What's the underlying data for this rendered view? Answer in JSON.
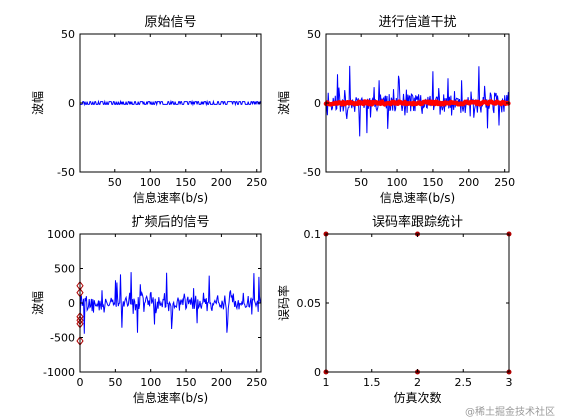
{
  "watermark": "@稀土掘金技术社区",
  "colors": {
    "signal": "#0000ff",
    "marker": "#ff0000",
    "diamond": "#b00000",
    "axis": "#000000"
  },
  "chart_data": [
    {
      "type": "line",
      "title": "原始信号",
      "xlabel": "信息速率(b/s)",
      "ylabel": "波幅",
      "xlim": [
        1,
        256
      ],
      "ylim": [
        -50,
        50
      ],
      "xticks": [
        50,
        100,
        150,
        200,
        250
      ],
      "yticks": [
        -50,
        0,
        50
      ],
      "series": [
        {
          "style": "blue-square-wave",
          "amplitude": 1,
          "n": 256,
          "seed": 11
        }
      ]
    },
    {
      "type": "line",
      "title": "进行信道干扰",
      "xlabel": "信息速率(b/s)",
      "ylabel": "波幅",
      "xlim": [
        1,
        256
      ],
      "ylim": [
        -50,
        50
      ],
      "xticks": [
        50,
        100,
        150,
        200,
        250
      ],
      "yticks": [
        -50,
        0,
        50
      ],
      "series": [
        {
          "style": "blue-noise",
          "amplitude": 8,
          "peak": 27,
          "n": 256,
          "seed": 23
        },
        {
          "style": "red-markers",
          "amplitude": 1,
          "n": 256,
          "seed": 37
        }
      ]
    },
    {
      "type": "line",
      "title": "扩频后的信号",
      "xlabel": "信息速率(b/s)",
      "ylabel": "波幅",
      "xlim": [
        0,
        256
      ],
      "ylim": [
        -1000,
        1000
      ],
      "xticks": [
        0,
        50,
        100,
        150,
        200,
        250
      ],
      "yticks": [
        -1000,
        -500,
        0,
        500,
        1000
      ],
      "series": [
        {
          "style": "blue-noise",
          "amplitude": 120,
          "peak": 450,
          "n": 256,
          "seed": 41
        },
        {
          "style": "red-diamonds",
          "x": [
            0,
            0,
            0,
            0,
            0,
            0
          ],
          "y": [
            250,
            150,
            -200,
            -250,
            -300,
            -550
          ]
        }
      ]
    },
    {
      "type": "line",
      "title": "误码率跟踪统计",
      "xlabel": "仿真次数",
      "ylabel": "误码率",
      "xlim": [
        1,
        3
      ],
      "ylim": [
        0,
        0.1
      ],
      "xticks": [
        1,
        1.5,
        2,
        2.5,
        3
      ],
      "yticks": [
        0,
        0.05,
        0.1
      ],
      "series": [
        {
          "name": "",
          "x": [
            1,
            2,
            3
          ],
          "y": [
            0.1,
            0.1,
            0.1
          ]
        },
        {
          "name": "",
          "x": [
            1,
            2,
            3
          ],
          "y": [
            0,
            0,
            0
          ]
        }
      ]
    }
  ]
}
